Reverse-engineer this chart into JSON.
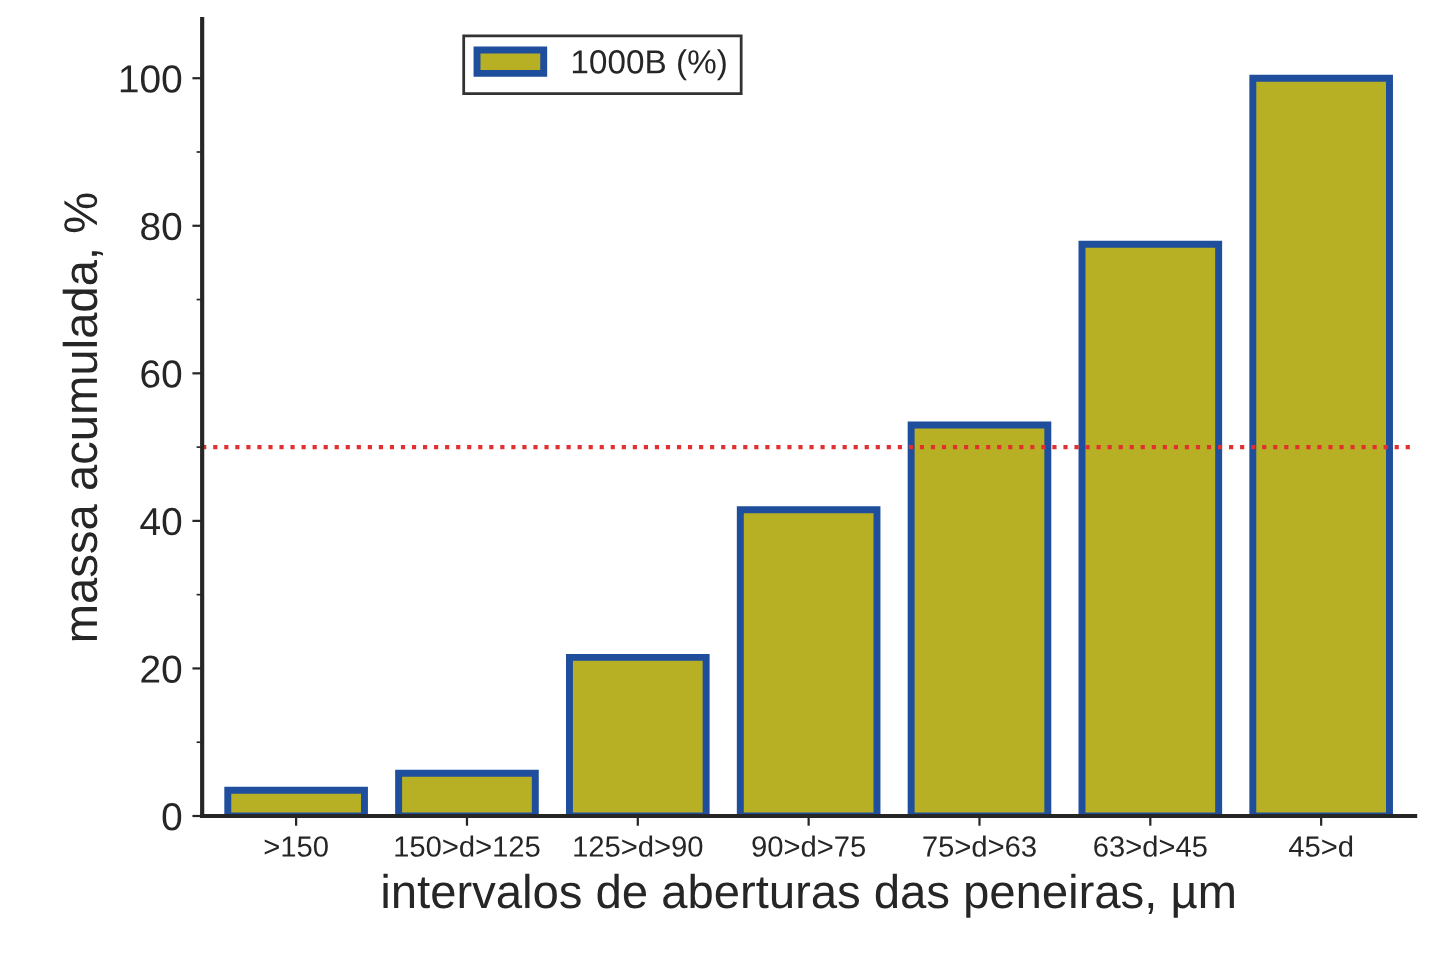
{
  "chart_data": {
    "type": "bar",
    "xlabel": "intervalos de aberturas das peneiras, µm",
    "ylabel": "massa acumulada, %",
    "categories": [
      ">150",
      "150>d>125",
      "125>d>90",
      "90>d>75",
      "75>d>63",
      "63>d>45",
      "45>d"
    ],
    "series": [
      {
        "name": "1000B (%)",
        "color": "#b8b024",
        "values": [
          3.5,
          5.8,
          21.5,
          41.5,
          53,
          77.5,
          100
        ]
      }
    ],
    "ylim": [
      0,
      108
    ],
    "yticks": [
      0,
      20,
      40,
      60,
      80,
      100
    ],
    "ref_lines": [
      {
        "axis": "y",
        "value": 50,
        "color": "#e03030",
        "line_style": "dotted"
      }
    ],
    "legend": "top",
    "grid": false
  }
}
